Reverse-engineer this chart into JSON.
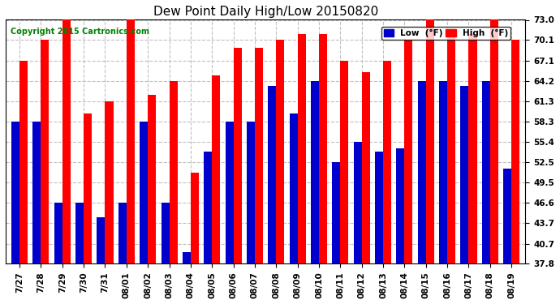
{
  "title": "Dew Point Daily High/Low 20150820",
  "copyright": "Copyright 2015 Cartronics.com",
  "dates": [
    "7/27",
    "7/28",
    "7/29",
    "7/30",
    "7/31",
    "08/01",
    "08/02",
    "08/03",
    "08/04",
    "08/05",
    "08/06",
    "08/07",
    "08/08",
    "08/09",
    "08/10",
    "08/11",
    "08/12",
    "08/13",
    "08/14",
    "08/15",
    "08/16",
    "08/17",
    "08/18",
    "08/19"
  ],
  "high": [
    67.1,
    70.1,
    73.0,
    59.5,
    61.3,
    73.0,
    62.2,
    64.2,
    51.0,
    65.0,
    69.0,
    69.0,
    70.1,
    71.0,
    71.0,
    67.1,
    65.5,
    67.1,
    70.1,
    73.0,
    71.0,
    71.0,
    73.0,
    70.1
  ],
  "low": [
    58.3,
    58.3,
    46.6,
    46.6,
    44.5,
    46.6,
    58.3,
    46.6,
    39.5,
    54.0,
    58.3,
    58.3,
    63.5,
    59.5,
    64.2,
    52.5,
    55.4,
    54.0,
    54.5,
    64.2,
    64.2,
    63.5,
    64.2,
    51.5
  ],
  "ylim_min": 37.8,
  "ylim_max": 73.0,
  "yticks": [
    37.8,
    40.7,
    43.7,
    46.6,
    49.5,
    52.5,
    55.4,
    58.3,
    61.3,
    64.2,
    67.1,
    70.1,
    73.0
  ],
  "high_color": "#FF0000",
  "low_color": "#0000CC",
  "bg_color": "#FFFFFF",
  "grid_color": "#C0C0C0",
  "bar_width": 0.38,
  "legend_low_label": "Low  (°F)",
  "legend_high_label": "High  (°F)"
}
